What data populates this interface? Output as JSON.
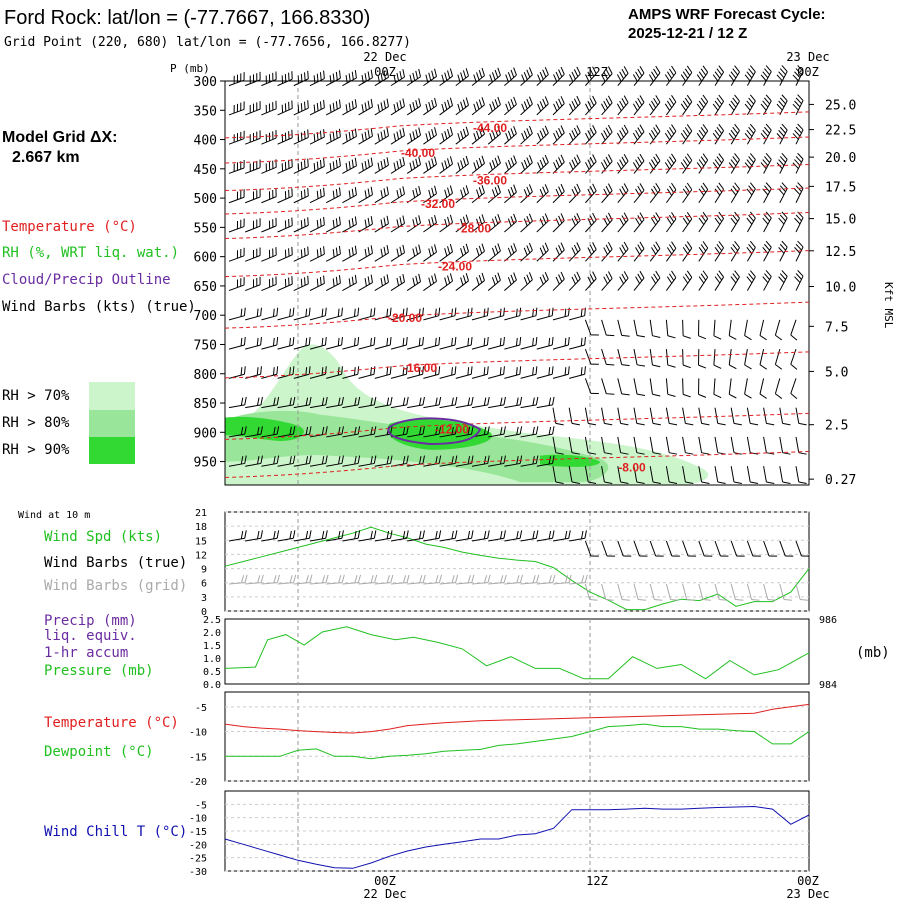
{
  "header": {
    "title": "Ford Rock:  lat/lon = (-77.7667, 166.8330)",
    "grid_point": "Grid Point (220, 680) lat/lon = (-77.7656, 166.8277)",
    "cycle_label": "AMPS WRF Forecast Cycle:",
    "cycle_value": "2025-12-21 / 12  Z"
  },
  "left_panel": {
    "model_grid": "Model Grid ΔX:",
    "model_grid_value": "2.667 km",
    "temperature_label": "Temperature (°C)",
    "rh_label": "RH (%, WRT liq. wat.)",
    "cloud_label": "Cloud/Precip Outline",
    "barbs_label": "Wind Barbs (kts) (true)",
    "rh70": "RH > 70%",
    "rh80": "RH > 80%",
    "rh90": "RH > 90%"
  },
  "colors": {
    "temp": "#e02020",
    "rh": "#20c020",
    "cloud": "#6a2ca0",
    "wind_chill": "#1010b0",
    "grid_barbs": "#aaaaaa",
    "rh70": "#ccf5cc",
    "rh80": "#99e599",
    "rh90": "#33d933"
  },
  "time_axis": {
    "top_labels": [
      {
        "date": "22 Dec",
        "time": "00Z"
      },
      {
        "date": "",
        "time": "12Z"
      },
      {
        "date": "23 Dec",
        "time": "00Z"
      }
    ],
    "bottom_labels": [
      {
        "time": "00Z",
        "date": "22 Dec"
      },
      {
        "time": "12Z",
        "date": ""
      },
      {
        "time": "00Z",
        "date": "23 Dec"
      }
    ]
  },
  "chart_data": [
    {
      "type": "heatmap",
      "title": "Time-height cross section",
      "ylabel": "P (mb)",
      "y2label": "Kft MSL",
      "pressure_ticks": [
        300,
        350,
        400,
        450,
        500,
        550,
        600,
        650,
        700,
        750,
        800,
        850,
        900,
        950
      ],
      "kft_ticks": [
        "25.0",
        "22.5",
        "20.0",
        "17.5",
        "15.0",
        "12.5",
        "10.0",
        "7.5",
        "5.0",
        "2.5",
        "0.27"
      ],
      "kft_pressure": [
        340,
        383,
        430,
        480,
        535,
        590,
        651,
        719,
        796,
        887,
        980
      ],
      "temperature_contours": [
        {
          "label": "-44.00",
          "pressure": 380
        },
        {
          "label": "-40.00",
          "pressure": 423
        },
        {
          "label": "-36.00",
          "pressure": 470
        },
        {
          "label": "-32.00",
          "pressure": 510
        },
        {
          "label": "-28.00",
          "pressure": 552
        },
        {
          "label": "-24.00",
          "pressure": 617
        },
        {
          "label": "-20.00",
          "pressure": 705
        },
        {
          "label": "-16.00",
          "pressure": 790
        },
        {
          "label": "-12.00",
          "pressure": 895
        },
        {
          "label": "-8.00",
          "pressure": 960
        }
      ],
      "rh_thresholds": [
        "RH > 70%",
        "RH > 80%",
        "RH > 90%"
      ]
    },
    {
      "type": "line",
      "title": "Wind at 10 m",
      "series_labels": [
        "Wind Spd (kts)",
        "Wind Barbs (true)",
        "Wind Barbs (grid)"
      ],
      "y_ticks": [
        0,
        3,
        6,
        9,
        12,
        15,
        18,
        21
      ],
      "ylim": [
        0,
        21
      ],
      "x_hours": [
        0,
        3,
        6,
        9,
        12,
        15,
        18,
        21,
        24,
        27,
        30,
        33,
        36,
        39,
        42,
        45,
        48,
        51,
        54,
        57,
        60,
        63,
        66,
        69,
        72,
        75,
        78,
        81,
        84,
        87,
        90,
        93,
        96
      ],
      "series": [
        {
          "name": "Wind Spd (kts)",
          "values": [
            9.5,
            10.5,
            11.5,
            12.5,
            13.5,
            14.5,
            15.5,
            16.5,
            17.8,
            16.5,
            15.5,
            14.2,
            13.5,
            12.5,
            11.8,
            11.2,
            10.8,
            10.5,
            9.2,
            6.5,
            4,
            2.3,
            0.3,
            0.3,
            1.5,
            2.5,
            2.2,
            3.6,
            1,
            2,
            2,
            4,
            9
          ]
        }
      ]
    },
    {
      "type": "line",
      "title": "Precip / Pressure",
      "series_labels": [
        "Precip (mm)",
        "liq. equiv.",
        "1-hr accum",
        "Pressure (mb)"
      ],
      "y_ticks": [
        "0.0",
        "0.5",
        "1.0",
        "1.5",
        "2.0",
        "2.5"
      ],
      "ylim": [
        0,
        2.5
      ],
      "y2_ticks": [
        "986",
        "984"
      ],
      "y2label": "(mb)",
      "x_hours": [
        0,
        5,
        7,
        10,
        13,
        16,
        20,
        24,
        28,
        31,
        35,
        39,
        43,
        47,
        51,
        55,
        59,
        63,
        67,
        71,
        75,
        79,
        83,
        87,
        91,
        96
      ],
      "series": [
        {
          "name": "Pressure (mb) (plotted on 0–2.5 scale)",
          "values": [
            0.6,
            0.65,
            1.7,
            1.9,
            1.5,
            2.0,
            2.2,
            1.9,
            1.7,
            1.8,
            1.6,
            1.35,
            0.7,
            1.05,
            0.6,
            0.6,
            0.2,
            0.2,
            1.05,
            0.6,
            0.75,
            0.2,
            0.9,
            0.35,
            0.55,
            1.2
          ]
        }
      ]
    },
    {
      "type": "line",
      "title": "Temperature / Dewpoint",
      "series_labels": [
        "Temperature (°C)",
        "Dewpoint (°C)"
      ],
      "y_ticks": [
        -5,
        -10,
        -15,
        -20
      ],
      "ylim": [
        -20,
        -2
      ],
      "x_hours": [
        0,
        3,
        6,
        9,
        12,
        15,
        18,
        21,
        24,
        27,
        30,
        33,
        36,
        39,
        42,
        45,
        48,
        51,
        54,
        57,
        60,
        63,
        66,
        69,
        72,
        75,
        78,
        81,
        84,
        87,
        90,
        93,
        96
      ],
      "series": [
        {
          "name": "Temperature (°C)",
          "values": [
            -8.5,
            -9,
            -9.3,
            -9.5,
            -9.8,
            -10,
            -10.2,
            -10.3,
            -10,
            -9.5,
            -8.8,
            -8.5,
            -8.2,
            -8,
            -7.8,
            -7.7,
            -7.6,
            -7.5,
            -7.4,
            -7.3,
            -7.2,
            -7.1,
            -7,
            -6.9,
            -6.8,
            -6.7,
            -6.6,
            -6.5,
            -6.4,
            -6.3,
            -5.5,
            -5,
            -4.5
          ]
        },
        {
          "name": "Dewpoint (°C)",
          "values": [
            -15,
            -15,
            -15,
            -15,
            -13.8,
            -13.5,
            -15,
            -15,
            -15.5,
            -15,
            -14.8,
            -14.5,
            -14,
            -13.8,
            -13.6,
            -12.8,
            -12.5,
            -12,
            -11.5,
            -11,
            -10,
            -9,
            -8.8,
            -8.5,
            -9,
            -9,
            -9.5,
            -9.5,
            -9.8,
            -10,
            -12.5,
            -12.5,
            -10
          ]
        }
      ]
    },
    {
      "type": "line",
      "title": "Wind Chill",
      "series_labels": [
        "Wind Chill T (°C)"
      ],
      "y_ticks": [
        -5,
        -10,
        -15,
        -20,
        -25,
        -30
      ],
      "ylim": [
        -30,
        0
      ],
      "x_hours": [
        0,
        3,
        6,
        9,
        12,
        15,
        18,
        21,
        24,
        27,
        30,
        33,
        36,
        39,
        42,
        45,
        48,
        51,
        54,
        57,
        60,
        63,
        66,
        69,
        72,
        75,
        78,
        81,
        84,
        87,
        90,
        93,
        96
      ],
      "series": [
        {
          "name": "Wind Chill T (°C)",
          "values": [
            -18,
            -20,
            -22,
            -24,
            -26,
            -27.5,
            -28.8,
            -29,
            -27,
            -24.5,
            -22.5,
            -21,
            -20,
            -19,
            -18,
            -18,
            -16.5,
            -16,
            -14,
            -7,
            -7,
            -7,
            -6.8,
            -6.5,
            -6.8,
            -6.8,
            -6.5,
            -6.2,
            -6,
            -5.8,
            -6.8,
            -12.5,
            -9
          ]
        }
      ]
    }
  ],
  "lower_labels": {
    "wind_title": "Wind at 10 m",
    "wind_spd": "Wind Spd (kts)",
    "wind_barbs_true": "Wind Barbs (true)",
    "wind_barbs_grid": "Wind Barbs (grid)",
    "precip1": "Precip (mm)",
    "precip2": "liq. equiv.",
    "precip3": "1-hr accum",
    "pressure": "Pressure (mb)",
    "pressure_unit": "(mb)",
    "temperature": "Temperature (°C)",
    "dewpoint": "Dewpoint (°C)",
    "wind_chill": "Wind Chill T (°C)"
  }
}
